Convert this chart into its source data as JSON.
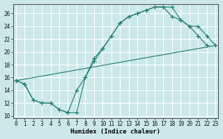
{
  "xlabel": "Humidex (Indice chaleur)",
  "bg_color": "#cce8e8",
  "grid_color": "#ffffff",
  "line_color": "#1a7a6e",
  "xlim": [
    0,
    23
  ],
  "ylim": [
    10,
    27
  ],
  "xticks": [
    0,
    1,
    2,
    3,
    4,
    5,
    6,
    7,
    8,
    9,
    10,
    11,
    12,
    13,
    14,
    15,
    16,
    17,
    18,
    19,
    20,
    21,
    22,
    23
  ],
  "yticks": [
    10,
    12,
    14,
    16,
    18,
    20,
    22,
    24,
    26
  ],
  "curve1_x": [
    0,
    1,
    2,
    3,
    4,
    5,
    6,
    7,
    8,
    9,
    10,
    11,
    12,
    13,
    14,
    15,
    16,
    17,
    18,
    19,
    20,
    21,
    22
  ],
  "curve1_y": [
    15.5,
    15.0,
    12.5,
    12.0,
    12.0,
    11.0,
    10.5,
    10.5,
    16.0,
    19.0,
    20.5,
    22.5,
    24.5,
    25.5,
    26.0,
    26.5,
    27.0,
    27.0,
    27.0,
    25.0,
    24.0,
    22.5,
    21.0
  ],
  "curve2_x": [
    0,
    1,
    2,
    3,
    4,
    5,
    6,
    7,
    8,
    9,
    10,
    11,
    12,
    13,
    14,
    15,
    16,
    17,
    18,
    19,
    20,
    21,
    22,
    23
  ],
  "curve2_y": [
    15.5,
    15.0,
    12.5,
    12.0,
    12.0,
    11.0,
    10.5,
    14.0,
    16.0,
    18.5,
    20.5,
    22.5,
    24.5,
    25.5,
    26.0,
    26.5,
    27.0,
    27.0,
    25.5,
    25.0,
    24.0,
    24.0,
    22.5,
    21.0
  ],
  "line3_x": [
    0,
    23
  ],
  "line3_y": [
    15.5,
    21.0
  ],
  "marker": "+"
}
